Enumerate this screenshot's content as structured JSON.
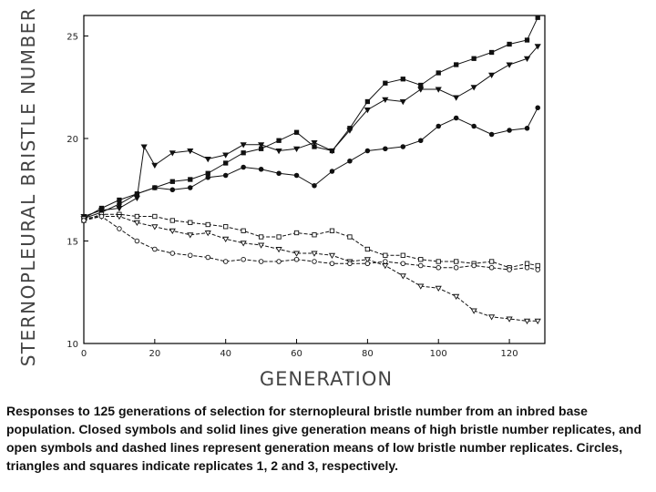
{
  "caption": "Responses to 125 generations of selection for sternopleural bristle number from an inbred base population. Closed symbols and solid lines give generation means of high bristle number replicates, and open symbols and dashed lines represent generation means of low bristle number replicates. Circles, triangles and squares indicate replicates 1, 2 and 3, respectively.",
  "chart_data": {
    "type": "line",
    "xlabel": "GENERATION",
    "ylabel": "STERNOPLEURAL BRISTLE NUMBER",
    "xlim": [
      0,
      130
    ],
    "ylim": [
      10,
      26
    ],
    "x_ticks": [
      "0",
      "20",
      "40",
      "60",
      "80",
      "100",
      "120"
    ],
    "y_ticks": [
      "10",
      "15",
      "20",
      "25"
    ],
    "grid": false,
    "series": [
      {
        "marker": "filled-square",
        "line": "solid",
        "x": [
          0,
          5,
          10,
          15,
          20,
          25,
          30,
          35,
          40,
          45,
          50,
          55,
          60,
          65,
          70,
          75,
          80,
          85,
          90,
          95,
          100,
          105,
          110,
          115,
          120,
          125,
          128
        ],
        "y": [
          16.1,
          16.6,
          17.0,
          17.3,
          17.6,
          17.9,
          18.0,
          18.3,
          18.8,
          19.3,
          19.5,
          19.9,
          20.3,
          19.6,
          19.4,
          20.5,
          21.8,
          22.7,
          22.9,
          22.6,
          23.2,
          23.6,
          23.9,
          24.2,
          24.6,
          24.8,
          25.9
        ]
      },
      {
        "marker": "filled-triangle",
        "line": "solid",
        "x": [
          0,
          5,
          10,
          15,
          17,
          20,
          25,
          30,
          35,
          40,
          45,
          50,
          55,
          60,
          65,
          70,
          75,
          80,
          85,
          90,
          95,
          100,
          105,
          110,
          115,
          120,
          125,
          128
        ],
        "y": [
          16.2,
          16.5,
          16.6,
          17.1,
          19.6,
          18.7,
          19.3,
          19.4,
          19.0,
          19.2,
          19.7,
          19.7,
          19.4,
          19.5,
          19.8,
          19.4,
          20.4,
          21.4,
          21.9,
          21.8,
          22.4,
          22.4,
          22.0,
          22.5,
          23.1,
          23.6,
          23.9,
          24.5
        ]
      },
      {
        "marker": "filled-circle",
        "line": "solid",
        "x": [
          0,
          5,
          10,
          15,
          20,
          25,
          30,
          35,
          40,
          45,
          50,
          55,
          60,
          65,
          70,
          75,
          80,
          85,
          90,
          95,
          100,
          105,
          110,
          115,
          120,
          125,
          128
        ],
        "y": [
          16.1,
          16.4,
          16.8,
          17.3,
          17.6,
          17.5,
          17.6,
          18.1,
          18.2,
          18.6,
          18.5,
          18.3,
          18.2,
          17.7,
          18.4,
          18.9,
          19.4,
          19.5,
          19.6,
          19.9,
          20.6,
          21.0,
          20.6,
          20.2,
          20.4,
          20.5,
          21.5
        ]
      },
      {
        "marker": "open-square",
        "line": "dashed",
        "x": [
          0,
          5,
          10,
          15,
          20,
          25,
          30,
          35,
          40,
          45,
          50,
          55,
          60,
          65,
          70,
          75,
          80,
          85,
          90,
          95,
          100,
          105,
          110,
          115,
          120,
          125,
          128
        ],
        "y": [
          16.0,
          16.3,
          16.3,
          16.2,
          16.2,
          16.0,
          15.9,
          15.8,
          15.7,
          15.5,
          15.2,
          15.2,
          15.4,
          15.3,
          15.5,
          15.2,
          14.6,
          14.3,
          14.3,
          14.1,
          14.0,
          14.0,
          13.9,
          14.0,
          13.7,
          13.9,
          13.8
        ]
      },
      {
        "marker": "open-triangle",
        "line": "dashed",
        "x": [
          0,
          5,
          10,
          15,
          20,
          25,
          30,
          35,
          40,
          45,
          50,
          55,
          60,
          65,
          70,
          75,
          80,
          85,
          90,
          95,
          100,
          105,
          110,
          115,
          120,
          125,
          128
        ],
        "y": [
          16.1,
          16.2,
          16.2,
          15.9,
          15.7,
          15.5,
          15.3,
          15.4,
          15.1,
          14.9,
          14.8,
          14.6,
          14.4,
          14.4,
          14.3,
          14.0,
          14.1,
          13.8,
          13.3,
          12.8,
          12.7,
          12.3,
          11.6,
          11.3,
          11.2,
          11.1,
          11.1
        ]
      },
      {
        "marker": "open-circle",
        "line": "dashed",
        "x": [
          0,
          5,
          10,
          15,
          20,
          25,
          30,
          35,
          40,
          45,
          50,
          55,
          60,
          65,
          70,
          75,
          80,
          85,
          90,
          95,
          100,
          105,
          110,
          115,
          120,
          125,
          128
        ],
        "y": [
          16.0,
          16.2,
          15.6,
          15.0,
          14.6,
          14.4,
          14.3,
          14.2,
          14.0,
          14.1,
          14.0,
          14.0,
          14.1,
          14.0,
          13.9,
          13.9,
          13.9,
          14.0,
          13.9,
          13.8,
          13.7,
          13.7,
          13.8,
          13.7,
          13.6,
          13.7,
          13.6
        ]
      }
    ]
  }
}
